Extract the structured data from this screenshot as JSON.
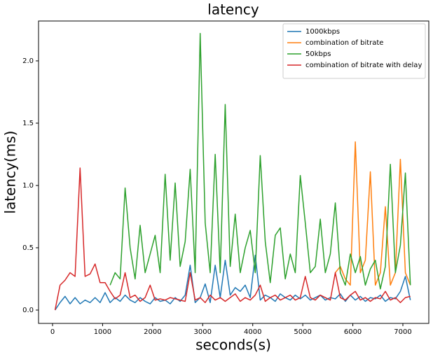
{
  "chart_data": {
    "type": "line",
    "title": "latency",
    "x_label": "seconds(s)",
    "y_label": "latency(ms)",
    "x": [
      50,
      150,
      250,
      350,
      450,
      550,
      650,
      750,
      850,
      950,
      1050,
      1150,
      1250,
      1350,
      1450,
      1550,
      1650,
      1750,
      1850,
      1950,
      2050,
      2150,
      2250,
      2350,
      2450,
      2550,
      2650,
      2750,
      2850,
      2950,
      3050,
      3150,
      3250,
      3350,
      3450,
      3550,
      3650,
      3750,
      3850,
      3950,
      4050,
      4150,
      4250,
      4350,
      4450,
      4550,
      4650,
      4750,
      4850,
      4950,
      5050,
      5150,
      5250,
      5350,
      5450,
      5550,
      5650,
      5750,
      5850,
      5950,
      6050,
      6150,
      6250,
      6350,
      6450,
      6550,
      6650,
      6750,
      6850,
      6950,
      7050,
      7150
    ],
    "series": [
      {
        "name": "1000kbps",
        "color": "#1f77b4",
        "values": [
          0,
          0.06,
          0.11,
          0.05,
          0.1,
          0.05,
          0.08,
          0.06,
          0.1,
          0.06,
          0.14,
          0.06,
          0.1,
          0.07,
          0.12,
          0.08,
          0.06,
          0.1,
          0.07,
          0.05,
          0.1,
          0.07,
          0.08,
          0.05,
          0.1,
          0.07,
          0.12,
          0.36,
          0.06,
          0.1,
          0.21,
          0.06,
          0.36,
          0.1,
          0.4,
          0.12,
          0.18,
          0.15,
          0.2,
          0.1,
          0.44,
          0.08,
          0.12,
          0.1,
          0.07,
          0.13,
          0.1,
          0.08,
          0.12,
          0.09,
          0.12,
          0.08,
          0.1,
          0.12,
          0.08,
          0.1,
          0.09,
          0.13,
          0.07,
          0.12,
          0.08,
          0.11,
          0.07,
          0.1,
          0.09,
          0.12,
          0.07,
          0.1,
          0.09,
          0.15,
          0.27,
          0.08
        ]
      },
      {
        "name": "combination of bitrate",
        "color": "#ff7f0e",
        "values": [
          null,
          null,
          null,
          null,
          null,
          null,
          null,
          null,
          null,
          null,
          null,
          null,
          null,
          null,
          null,
          null,
          null,
          null,
          null,
          null,
          null,
          null,
          null,
          null,
          null,
          null,
          null,
          null,
          null,
          null,
          null,
          null,
          null,
          null,
          null,
          null,
          null,
          null,
          null,
          null,
          null,
          null,
          null,
          null,
          null,
          null,
          null,
          null,
          null,
          null,
          null,
          null,
          null,
          null,
          null,
          null,
          0.3,
          0.35,
          0.25,
          0.2,
          1.35,
          0.3,
          0.4,
          1.11,
          0.2,
          0.3,
          0.83,
          0.2,
          0.3,
          1.21,
          0.3,
          0.2
        ]
      },
      {
        "name": "50kbps",
        "color": "#2ca02c",
        "values": [
          null,
          null,
          null,
          null,
          null,
          null,
          null,
          null,
          null,
          null,
          null,
          0.2,
          0.3,
          0.25,
          0.98,
          0.5,
          0.25,
          0.68,
          0.3,
          0.45,
          0.6,
          0.3,
          1.09,
          0.4,
          1.02,
          0.35,
          0.55,
          1.13,
          0.3,
          2.22,
          0.7,
          0.3,
          1.25,
          0.3,
          1.65,
          0.35,
          0.77,
          0.3,
          0.5,
          0.64,
          0.3,
          1.24,
          0.55,
          0.22,
          0.6,
          0.66,
          0.25,
          0.45,
          0.3,
          1.08,
          0.7,
          0.3,
          0.35,
          0.73,
          0.3,
          0.45,
          0.86,
          0.3,
          0.2,
          0.45,
          0.3,
          0.43,
          0.2,
          0.33,
          0.4,
          0.17,
          0.35,
          1.17,
          0.3,
          0.52,
          1.1,
          0.2
        ]
      },
      {
        "name": "combination of bitrate with delay",
        "color": "#d62728",
        "values": [
          0,
          0.2,
          0.24,
          0.3,
          0.27,
          1.14,
          0.27,
          0.29,
          0.37,
          0.22,
          0.22,
          0.15,
          0.09,
          0.12,
          0.3,
          0.1,
          0.12,
          0.07,
          0.1,
          0.2,
          0.08,
          0.09,
          0.08,
          0.1,
          0.09,
          0.08,
          0.07,
          0.3,
          0.08,
          0.1,
          0.06,
          0.12,
          0.08,
          0.1,
          0.07,
          0.1,
          0.13,
          0.07,
          0.1,
          0.08,
          0.12,
          0.2,
          0.07,
          0.1,
          0.12,
          0.08,
          0.1,
          0.12,
          0.08,
          0.1,
          0.27,
          0.1,
          0.08,
          0.12,
          0.1,
          0.08,
          0.3,
          0.1,
          0.08,
          0.12,
          0.15,
          0.08,
          0.1,
          0.07,
          0.1,
          0.09,
          0.15,
          0.08,
          0.1,
          0.06,
          0.1,
          0.11
        ]
      }
    ],
    "xlim": [
      -280,
      7518
    ],
    "ylim": [
      -0.107,
      2.32
    ],
    "xticks": [
      0,
      1000,
      2000,
      3000,
      4000,
      5000,
      6000,
      7000
    ],
    "yticks": [
      {
        "value": 0,
        "label": "0.0"
      },
      0.5,
      {
        "value": 1,
        "label": "1.0"
      },
      1.5,
      {
        "value": 2,
        "label": "2.0"
      }
    ],
    "legend": "upper right"
  }
}
